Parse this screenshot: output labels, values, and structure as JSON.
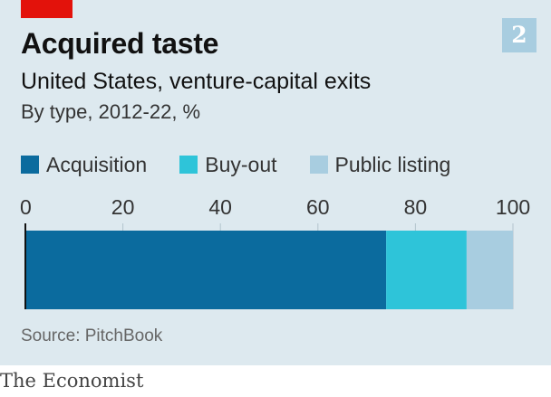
{
  "badge": "2",
  "title": "Acquired taste",
  "subtitle": "United States, venture-capital exits",
  "subsubtitle": "By type, 2012-22, %",
  "source": "Source: PitchBook",
  "brand": "The Economist",
  "colors": {
    "acquisition": "#0b6b9e",
    "buyout": "#2ec4d9",
    "public_listing": "#a8cde0",
    "accent_red": "#e3120b",
    "background": "#dde9ef"
  },
  "chart_data": {
    "type": "bar",
    "orientation": "horizontal-stacked",
    "categories": [
      ""
    ],
    "series": [
      {
        "name": "Acquisition",
        "values": [
          74
        ]
      },
      {
        "name": "Buy-out",
        "values": [
          16.5
        ]
      },
      {
        "name": "Public listing",
        "values": [
          9.5
        ]
      }
    ],
    "xlim": [
      0,
      100
    ],
    "xticks": [
      "0",
      "20",
      "40",
      "60",
      "80",
      "100"
    ],
    "legend": "top",
    "grid": true
  }
}
